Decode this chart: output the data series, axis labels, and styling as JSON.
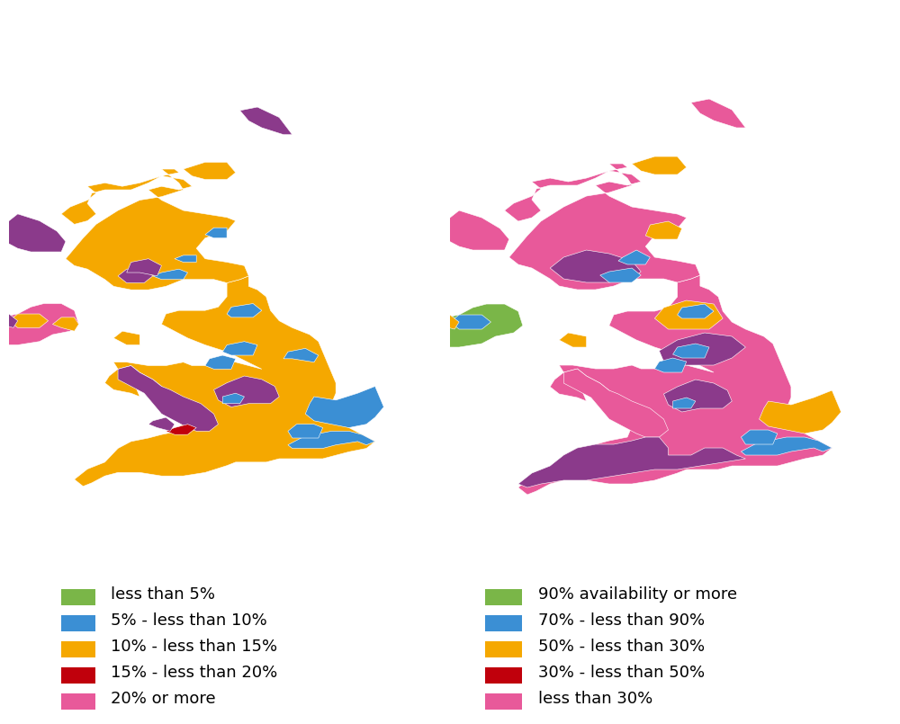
{
  "left_legend": [
    {
      "color": "#7ab648",
      "label": "less than 5%"
    },
    {
      "color": "#3b8fd4",
      "label": "5% - less than 10%"
    },
    {
      "color": "#f5a800",
      "label": "10% - less than 15%"
    },
    {
      "color": "#c0000c",
      "label": "15% - less than 20%"
    },
    {
      "color": "#e8599a",
      "label": "20% or more"
    }
  ],
  "right_legend": [
    {
      "color": "#7ab648",
      "label": "90% availability or more"
    },
    {
      "color": "#3b8fd4",
      "label": "70% - less than 90%"
    },
    {
      "color": "#f5a800",
      "label": "50% - less than 30%"
    },
    {
      "color": "#c0000c",
      "label": "30% - less than 50%"
    },
    {
      "color": "#e8599a",
      "label": "less than 30%"
    }
  ],
  "orange": "#f5a800",
  "blue": "#3b8fd4",
  "purple": "#8b3a8b",
  "pink": "#e8599a",
  "red": "#c0000c",
  "green": "#7ab648",
  "white": "#ffffff",
  "background_color": "#ffffff",
  "legend_fontsize": 13,
  "figure_width": 10.0,
  "figure_height": 8.05
}
